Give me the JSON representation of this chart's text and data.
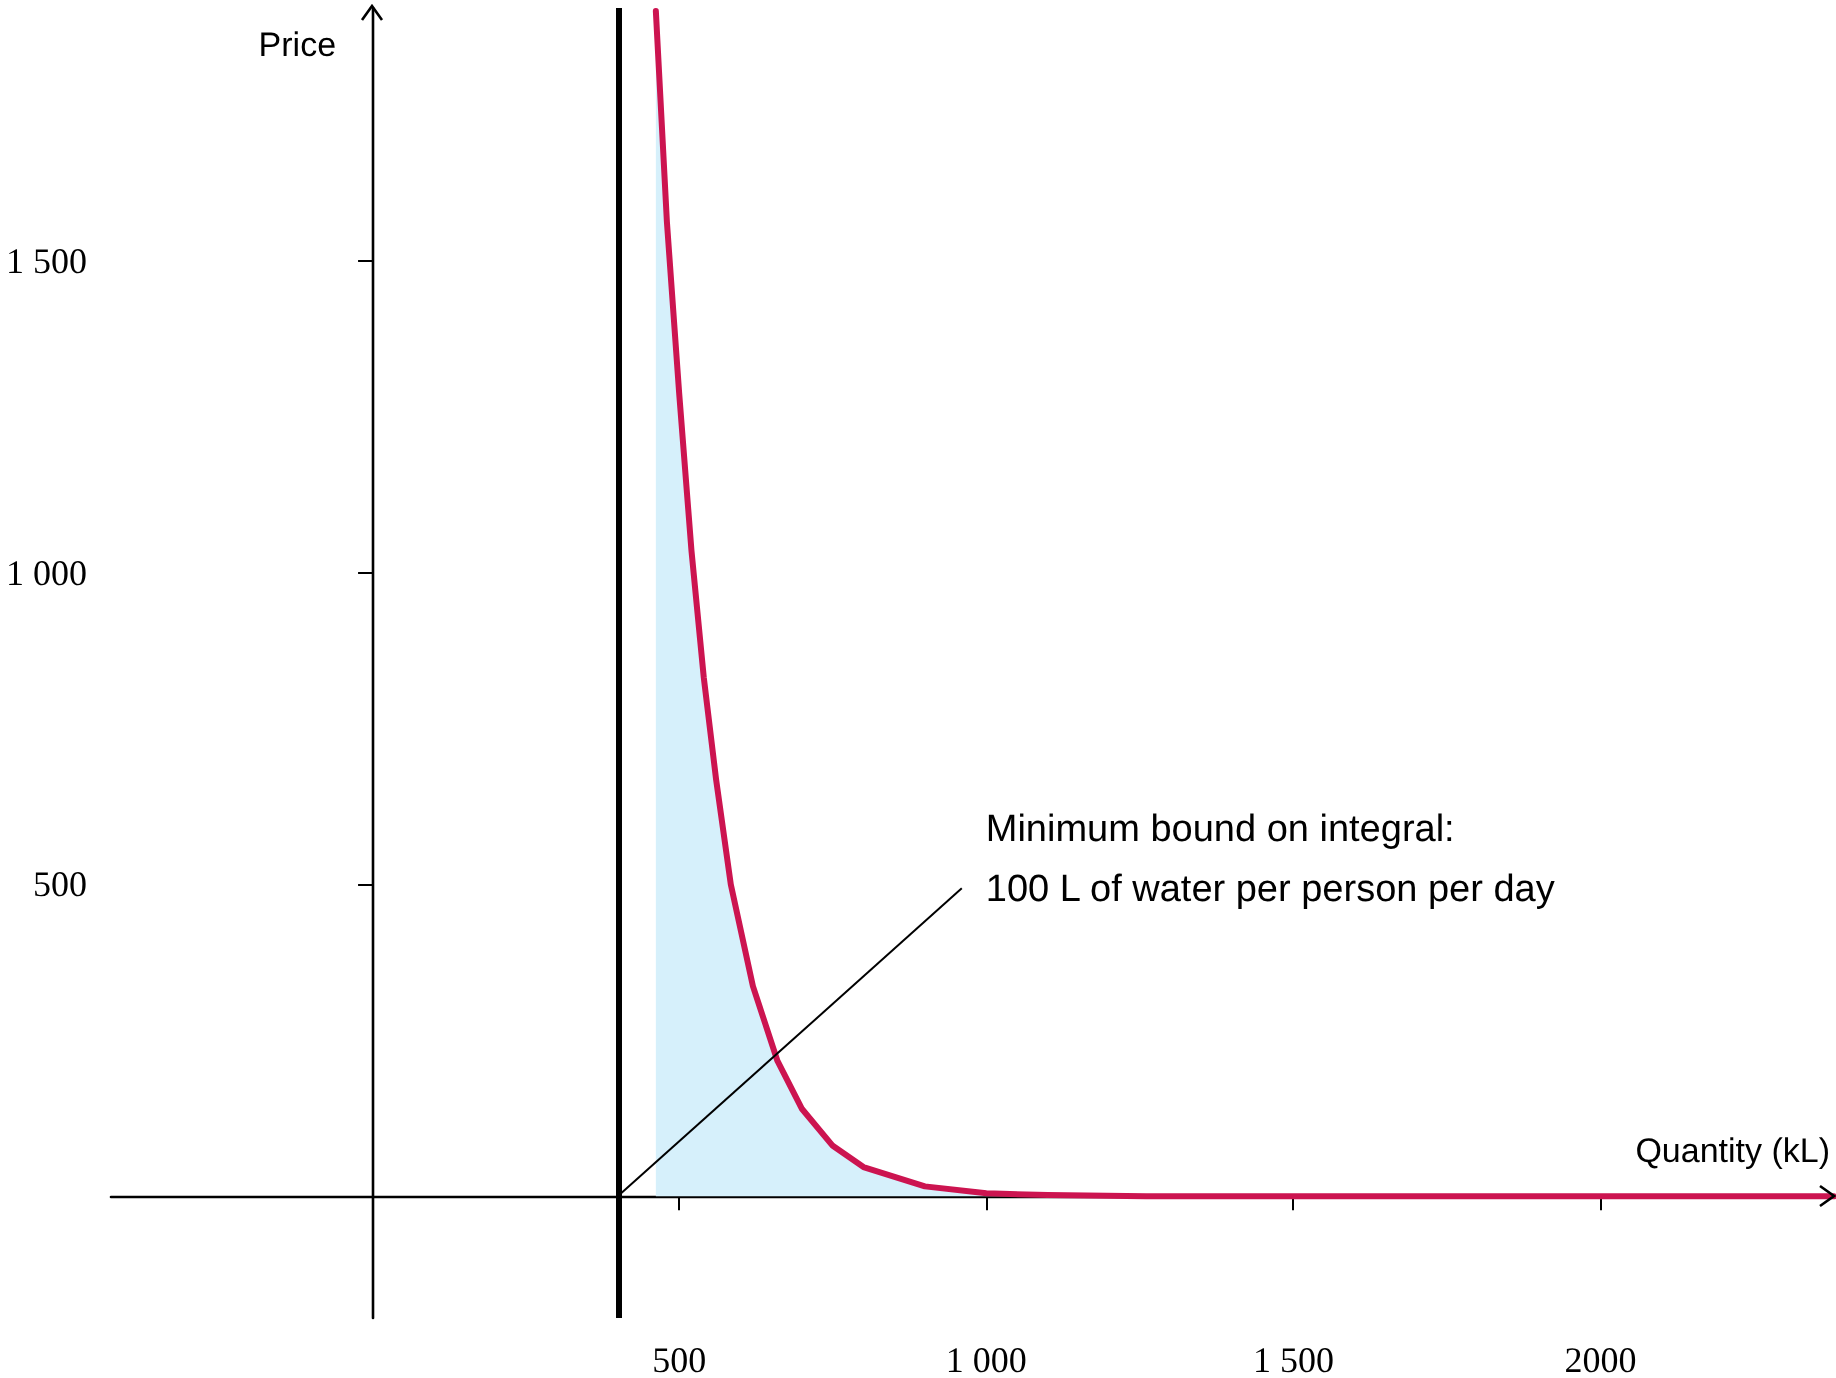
{
  "chart_data": {
    "type": "line",
    "xlabel": "Quantity (kL)",
    "ylabel": "Price",
    "xlim": [
      -425,
      2380
    ],
    "ylim": [
      -195,
      1905
    ],
    "xticks": [
      {
        "value": 500,
        "label": "500"
      },
      {
        "value": 1000,
        "label": "1 000"
      },
      {
        "value": 1500,
        "label": "1 500"
      },
      {
        "value": 2000,
        "label": "2000"
      }
    ],
    "yticks": [
      {
        "value": 500,
        "label": "500"
      },
      {
        "value": 1000,
        "label": "1 000"
      },
      {
        "value": 1500,
        "label": "1 500"
      }
    ],
    "grid": false,
    "marker": "none",
    "series": [
      {
        "type": "area",
        "color": "#d6f0fb",
        "x": [
          462,
          480,
          500,
          520,
          540,
          560,
          584,
          620,
          660,
          700,
          750,
          800,
          900,
          1000,
          1100,
          1260
        ],
        "values": [
          1900,
          1562,
          1287,
          1035,
          832,
          669,
          500,
          337,
          217,
          140,
          81,
          47,
          16,
          5,
          2,
          0
        ]
      },
      {
        "type": "line",
        "color": "#cc1450",
        "x": [
          462,
          480,
          500,
          520,
          540,
          560,
          584,
          620,
          660,
          700,
          750,
          800,
          900,
          1000,
          1100,
          1260,
          1500,
          2000,
          2380
        ],
        "values": [
          1900,
          1562,
          1287,
          1035,
          832,
          669,
          500,
          337,
          217,
          140,
          81,
          47,
          16,
          5,
          2,
          0,
          0,
          0,
          0
        ]
      }
    ],
    "ref_lines": [
      {
        "axis": "x",
        "value": 400,
        "color": "#000000"
      }
    ],
    "annotations": [
      {
        "text": "Minimum bound on integral:\n100 L of water per person per day",
        "x": 400,
        "y": 0
      }
    ]
  }
}
